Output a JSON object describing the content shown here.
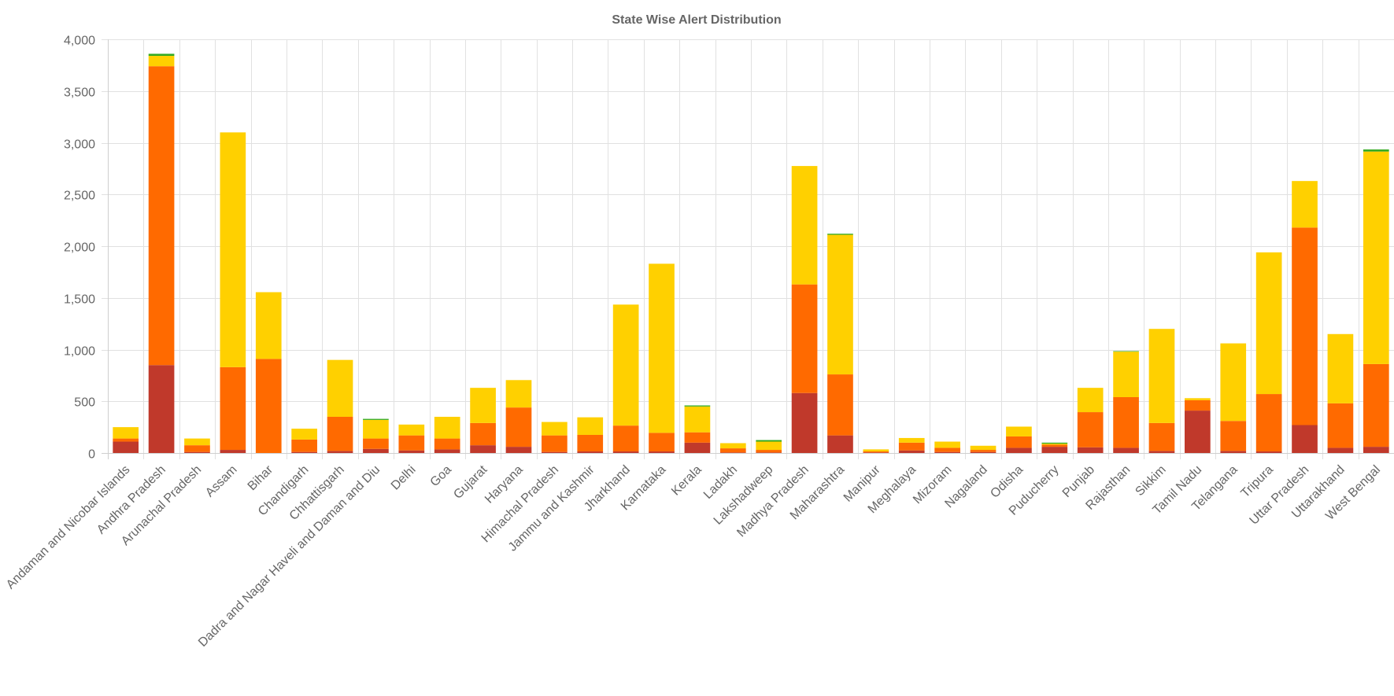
{
  "chart_data": {
    "type": "bar",
    "stacked": true,
    "title": "State Wise Alert Distribution",
    "xlabel": "",
    "ylabel": "",
    "ylim": [
      0,
      4000
    ],
    "yticks": [
      0,
      500,
      1000,
      1500,
      2000,
      2500,
      3000,
      3500,
      4000
    ],
    "ytick_labels": [
      "0",
      "500",
      "1,000",
      "1,500",
      "2,000",
      "2,500",
      "3,000",
      "3,500",
      "4,000"
    ],
    "grid": true,
    "legend": "none",
    "categories": [
      "Andaman and Nicobar Islands",
      "Andhra Pradesh",
      "Arunachal Pradesh",
      "Assam",
      "Bihar",
      "Chandigarh",
      "Chhattisgarh",
      "Dadra and Nagar Haveli and Daman and Diu",
      "Delhi",
      "Goa",
      "Gujarat",
      "Haryana",
      "Himachal Pradesh",
      "Jammu and Kashmir",
      "Jharkhand",
      "Karnataka",
      "Kerala",
      "Ladakh",
      "Lakshadweep",
      "Madhya Pradesh",
      "Maharashtra",
      "Manipur",
      "Meghalaya",
      "Mizoram",
      "Nagaland",
      "Odisha",
      "Puducherry",
      "Punjab",
      "Rajasthan",
      "Sikkim",
      "Tamil Nadu",
      "Telangana",
      "Tripura",
      "Uttar Pradesh",
      "Uttarakhand",
      "West Bengal"
    ],
    "series": [
      {
        "color": "#c0392b",
        "values": [
          110,
          850,
          10,
          30,
          0,
          10,
          20,
          40,
          25,
          35,
          75,
          60,
          10,
          15,
          15,
          15,
          100,
          5,
          5,
          580,
          170,
          5,
          25,
          10,
          10,
          50,
          60,
          55,
          50,
          20,
          410,
          20,
          15,
          270,
          50,
          60
        ]
      },
      {
        "color": "#ff6a00",
        "values": [
          30,
          2890,
          65,
          800,
          910,
          120,
          330,
          100,
          145,
          105,
          215,
          380,
          160,
          160,
          250,
          180,
          100,
          40,
          25,
          1050,
          590,
          10,
          75,
          40,
          20,
          110,
          20,
          340,
          490,
          270,
          100,
          290,
          555,
          1910,
          430,
          800
        ]
      },
      {
        "color": "#ffd000",
        "values": [
          110,
          100,
          65,
          2270,
          645,
          105,
          550,
          180,
          105,
          210,
          340,
          265,
          130,
          170,
          1170,
          1635,
          250,
          50,
          80,
          1145,
          1350,
          20,
          45,
          60,
          40,
          95,
          10,
          235,
          440,
          910,
          20,
          750,
          1370,
          450,
          670,
          2055
        ]
      },
      {
        "color": "#33aa22",
        "values": [
          0,
          20,
          0,
          0,
          0,
          0,
          0,
          10,
          0,
          0,
          0,
          0,
          0,
          0,
          0,
          0,
          10,
          0,
          15,
          0,
          10,
          0,
          0,
          0,
          0,
          0,
          10,
          0,
          5,
          0,
          0,
          0,
          0,
          0,
          0,
          20
        ]
      }
    ]
  }
}
